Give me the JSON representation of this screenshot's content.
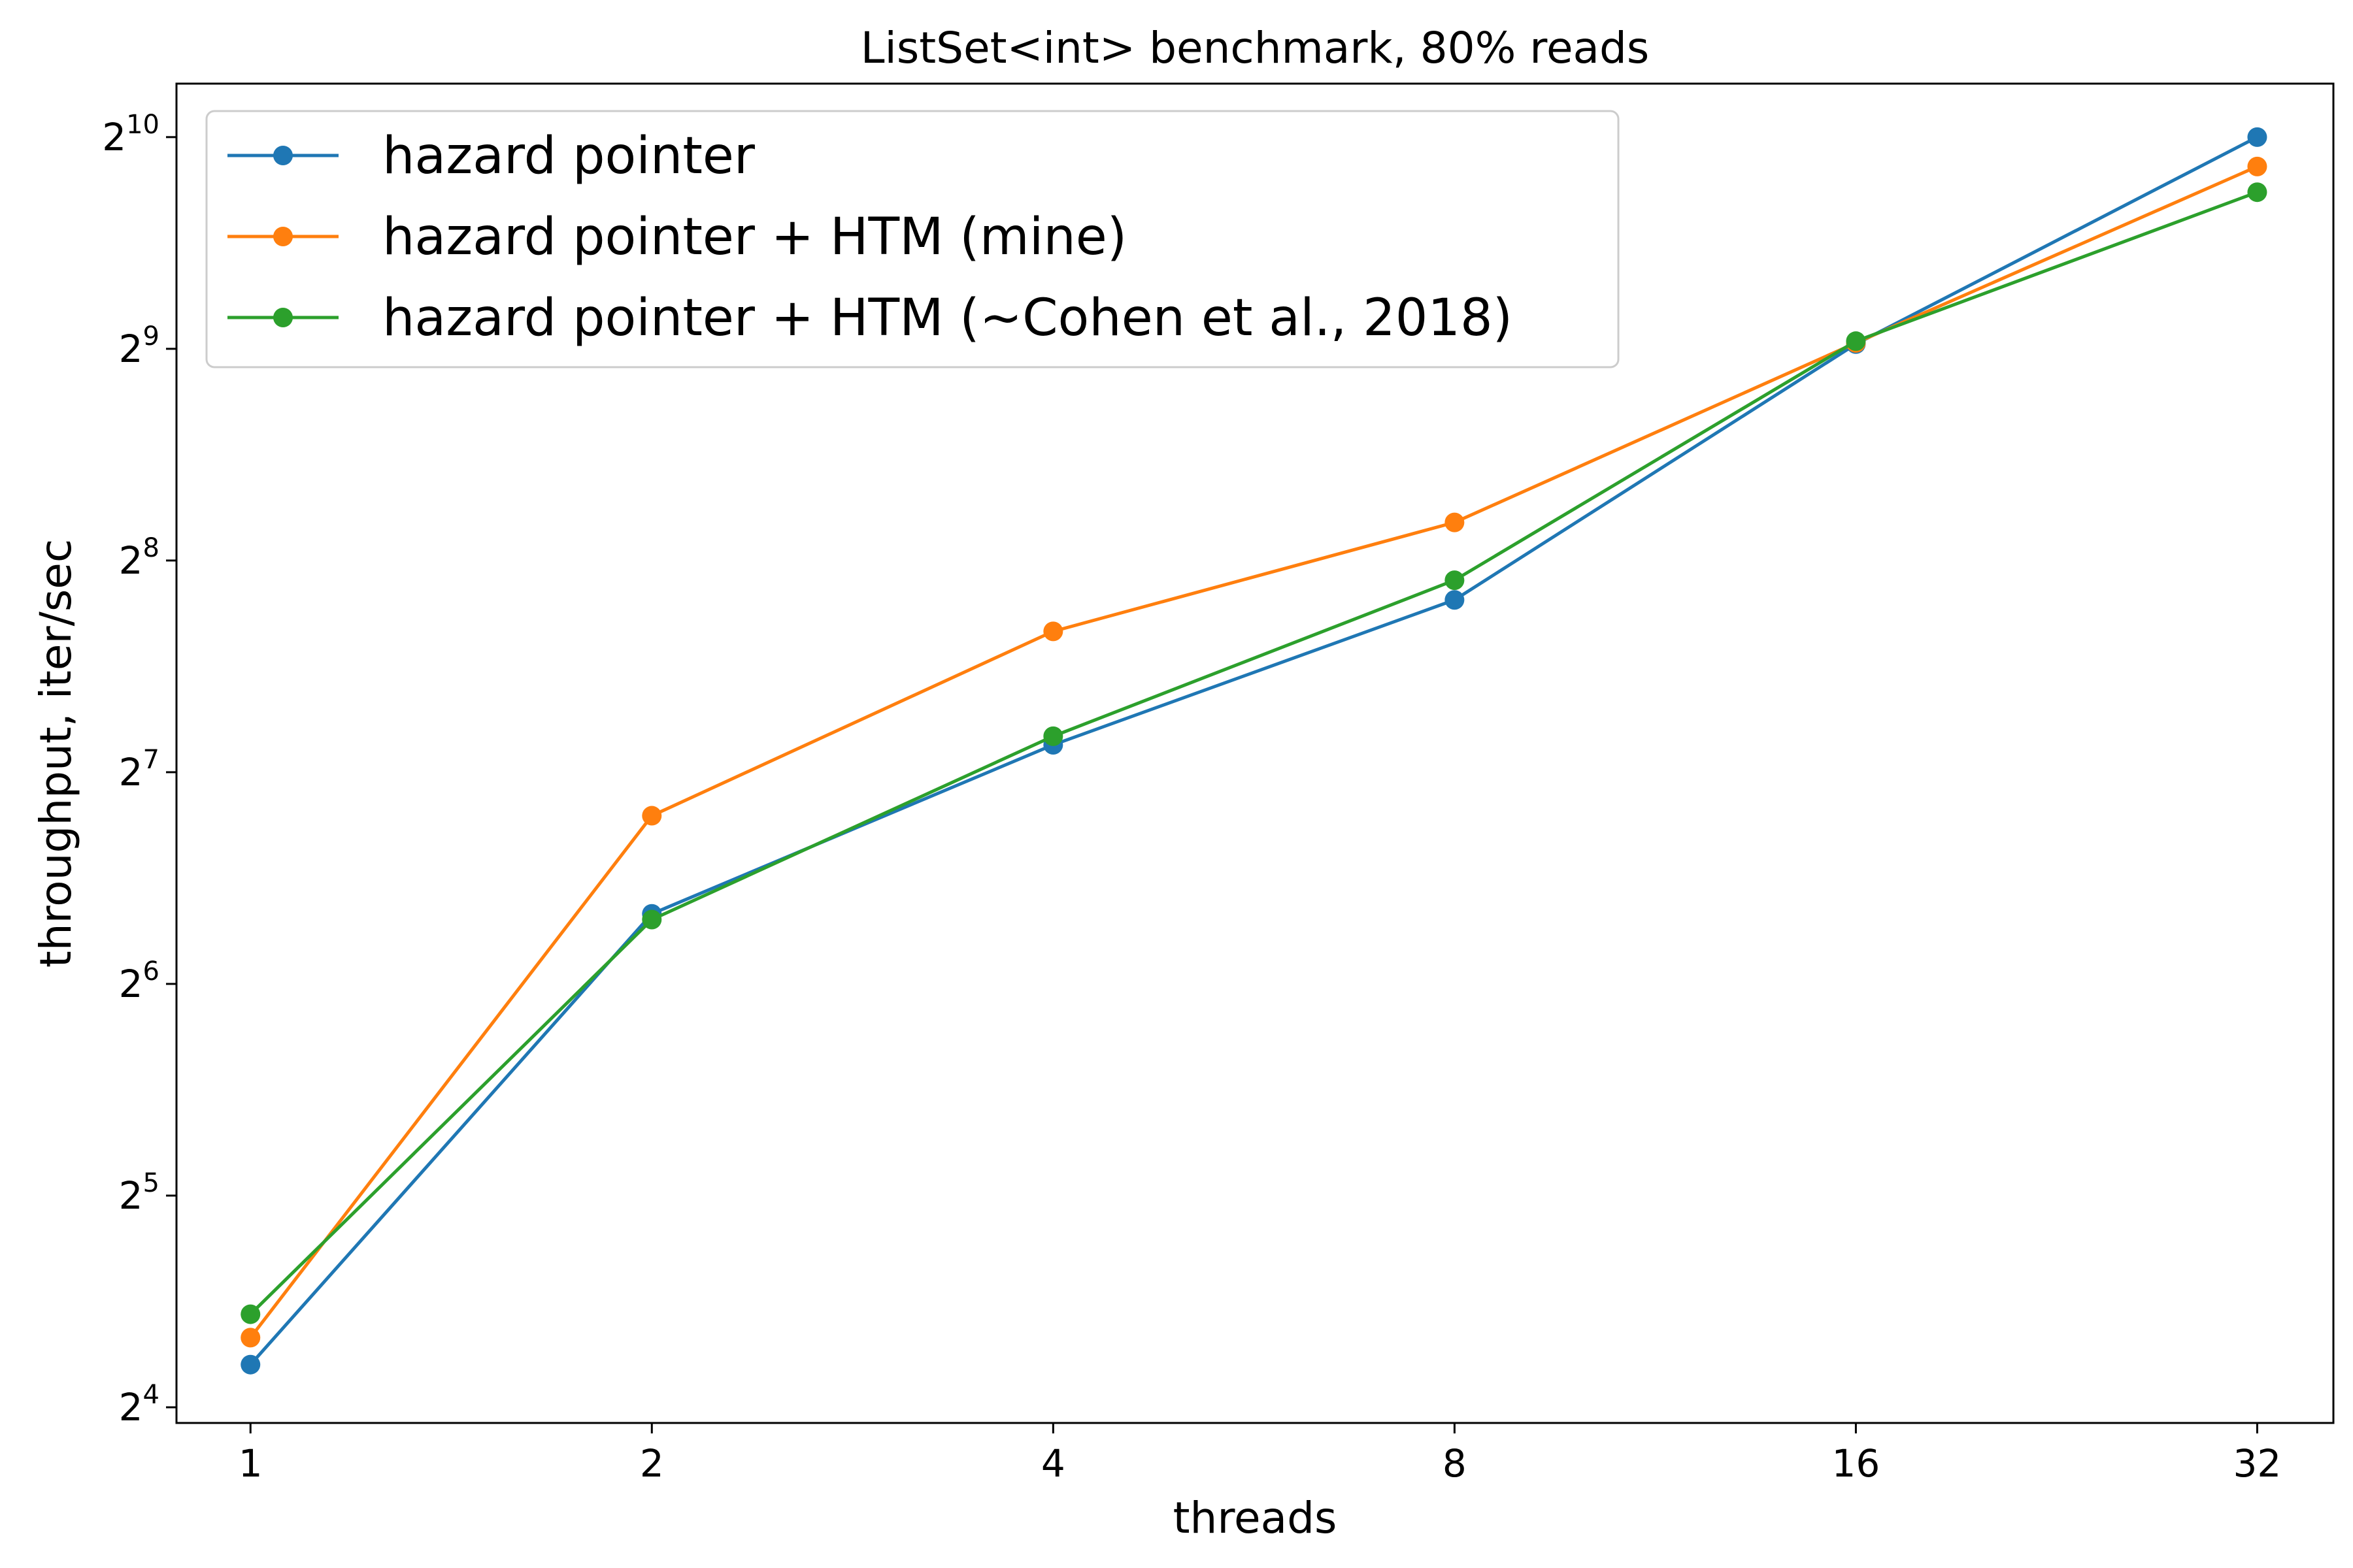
{
  "chart_data": {
    "type": "line",
    "title": "ListSet<int> benchmark, 80% reads",
    "xlabel": "threads",
    "ylabel": "throughput, iter/sec",
    "x_scale": "log2",
    "y_scale": "log2",
    "x": [
      1,
      2,
      4,
      8,
      16,
      32
    ],
    "x_ticks": [
      "1",
      "2",
      "4",
      "8",
      "16",
      "32"
    ],
    "y_ticks": [
      {
        "base": "2",
        "exp": "4",
        "value": 16
      },
      {
        "base": "2",
        "exp": "5",
        "value": 32
      },
      {
        "base": "2",
        "exp": "6",
        "value": 64
      },
      {
        "base": "2",
        "exp": "7",
        "value": 128
      },
      {
        "base": "2",
        "exp": "8",
        "value": 256
      },
      {
        "base": "2",
        "exp": "9",
        "value": 512
      },
      {
        "base": "2",
        "exp": "10",
        "value": 1024
      }
    ],
    "xlim": [
      0.88,
      36.5
    ],
    "ylim": [
      15.2,
      1220
    ],
    "grid": false,
    "legend_position": "top-left",
    "series": [
      {
        "name": "hazard pointer",
        "color": "#1f77b4",
        "values": [
          18.4,
          80.5,
          140,
          225,
          520,
          1024
        ]
      },
      {
        "name": "hazard pointer + HTM (mine)",
        "color": "#ff7f0e",
        "values": [
          20.1,
          111,
          203,
          290,
          522,
          930
        ]
      },
      {
        "name": "hazard pointer + HTM (~Cohen et al., 2018)",
        "color": "#2ca02c",
        "values": [
          21.7,
          79,
          144,
          240,
          525,
          855
        ]
      }
    ]
  }
}
